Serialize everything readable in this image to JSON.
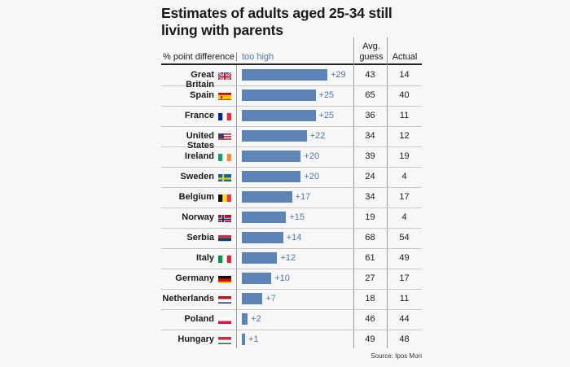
{
  "chart_data": {
    "type": "bar",
    "title": "Estimates of adults aged 25-34 still living with parents",
    "header_left": "% point difference",
    "header_divider": "|",
    "header_series": "too high",
    "header_guess": "Avg. guess",
    "header_actual": "Actual",
    "source": "Source: Ipos Mori",
    "xlim": [
      0,
      29
    ],
    "rows": [
      {
        "country": "Great Britain",
        "flag": "gb",
        "diff": 29,
        "diff_label": "+29",
        "guess": 43,
        "actual": 14
      },
      {
        "country": "Spain",
        "flag": "es",
        "diff": 25,
        "diff_label": "+25",
        "guess": 65,
        "actual": 40
      },
      {
        "country": "France",
        "flag": "fr",
        "diff": 25,
        "diff_label": "+25",
        "guess": 36,
        "actual": 11
      },
      {
        "country": "United States",
        "flag": "us",
        "diff": 22,
        "diff_label": "+22",
        "guess": 34,
        "actual": 12
      },
      {
        "country": "Ireland",
        "flag": "ie",
        "diff": 20,
        "diff_label": "+20",
        "guess": 39,
        "actual": 19
      },
      {
        "country": "Sweden",
        "flag": "se",
        "diff": 20,
        "diff_label": "+20",
        "guess": 24,
        "actual": 4
      },
      {
        "country": "Belgium",
        "flag": "be",
        "diff": 17,
        "diff_label": "+17",
        "guess": 34,
        "actual": 17
      },
      {
        "country": "Norway",
        "flag": "no",
        "diff": 15,
        "diff_label": "+15",
        "guess": 19,
        "actual": 4
      },
      {
        "country": "Serbia",
        "flag": "rs",
        "diff": 14,
        "diff_label": "+14",
        "guess": 68,
        "actual": 54
      },
      {
        "country": "Italy",
        "flag": "it",
        "diff": 12,
        "diff_label": "+12",
        "guess": 61,
        "actual": 49
      },
      {
        "country": "Germany",
        "flag": "de",
        "diff": 10,
        "diff_label": "+10",
        "guess": 27,
        "actual": 17
      },
      {
        "country": "Netherlands",
        "flag": "nl",
        "diff": 7,
        "diff_label": "+7",
        "guess": 18,
        "actual": 11
      },
      {
        "country": "Poland",
        "flag": "pl",
        "diff": 2,
        "diff_label": "+2",
        "guess": 46,
        "actual": 44
      },
      {
        "country": "Hungary",
        "flag": "hu",
        "diff": 1,
        "diff_label": "+1",
        "guess": 49,
        "actual": 48
      }
    ]
  }
}
